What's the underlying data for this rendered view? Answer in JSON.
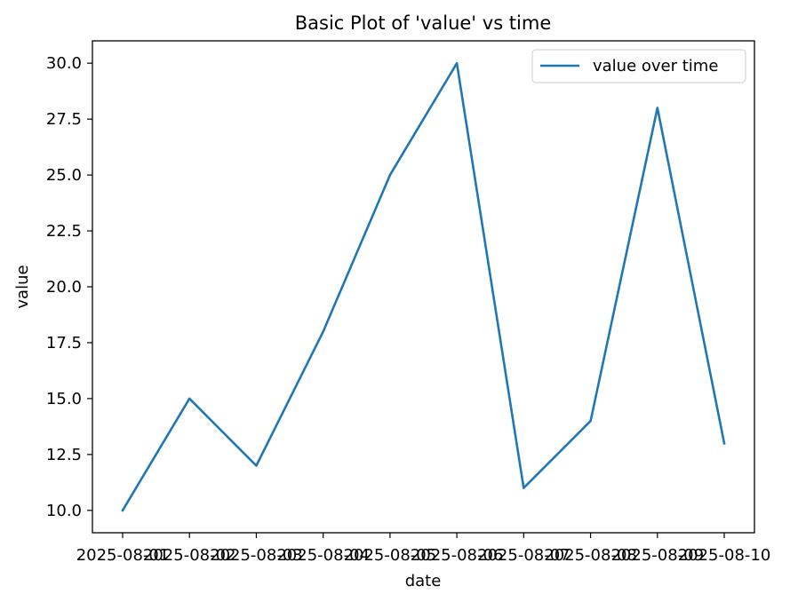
{
  "chart_data": {
    "type": "line",
    "title": "Basic Plot of 'value' vs time",
    "xlabel": "date",
    "ylabel": "value",
    "categories": [
      "2025-08-01",
      "2025-08-02",
      "2025-08-03",
      "2025-08-04",
      "2025-08-05",
      "2025-08-06",
      "2025-08-07",
      "2025-08-08",
      "2025-08-09",
      "2025-08-10"
    ],
    "series": [
      {
        "name": "value over time",
        "values": [
          10,
          15,
          12,
          18,
          25,
          30,
          11,
          14,
          28,
          13
        ],
        "color": "#1f77b4"
      }
    ],
    "ylim": [
      9.0,
      31.0
    ],
    "yticks": [
      "10.0",
      "12.5",
      "15.0",
      "17.5",
      "20.0",
      "22.5",
      "25.0",
      "27.5",
      "30.0"
    ],
    "legend_position": "top-right",
    "grid": false
  }
}
